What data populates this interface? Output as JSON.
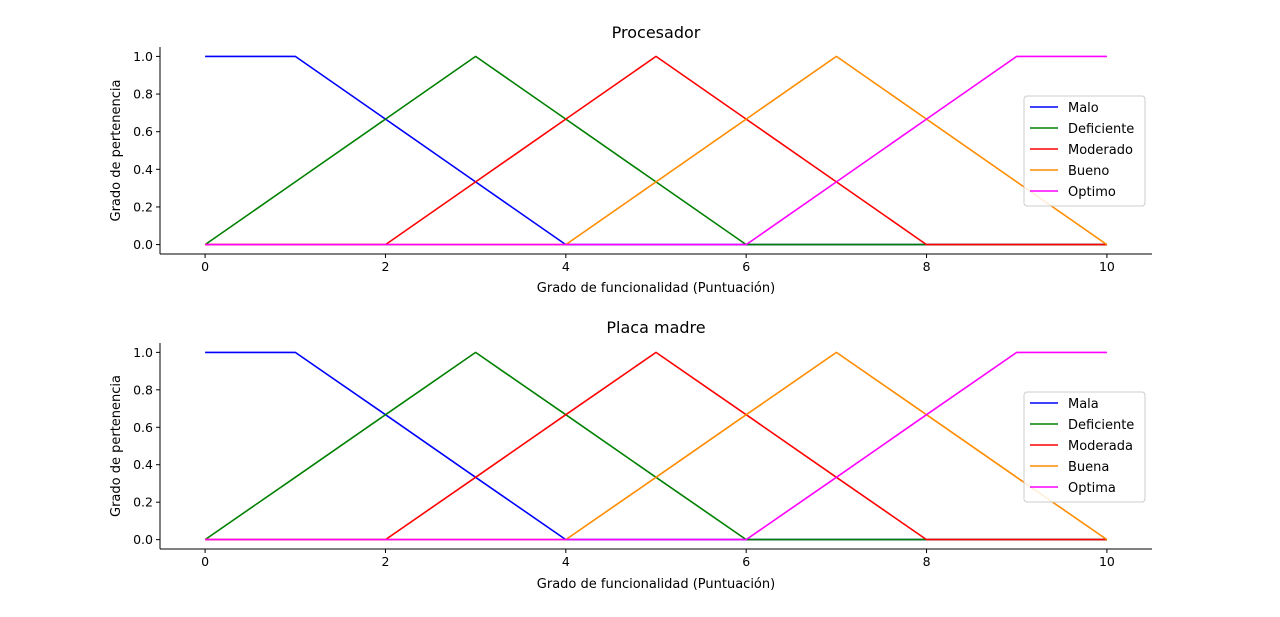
{
  "chart_data": [
    {
      "type": "line",
      "title": "Procesador",
      "xlabel": "Grado de funcionalidad (Puntuación)",
      "ylabel": "Grado de pertenencia",
      "xlim": [
        -0.5,
        10.5
      ],
      "ylim": [
        -0.05,
        1.05
      ],
      "xticks": [
        0,
        2,
        4,
        6,
        8,
        10
      ],
      "yticks": [
        0.0,
        0.2,
        0.4,
        0.6,
        0.8,
        1.0
      ],
      "grid": false,
      "legend_position": "center-right",
      "x": [
        0,
        1,
        2,
        3,
        4,
        5,
        6,
        7,
        8,
        9,
        10
      ],
      "series": [
        {
          "name": "Malo",
          "color": "#0000ff",
          "values": [
            1,
            1,
            0.667,
            0.333,
            0,
            0,
            0,
            0,
            0,
            0,
            0
          ]
        },
        {
          "name": "Deficiente",
          "color": "#008000",
          "values": [
            0,
            0.333,
            0.667,
            1,
            0.667,
            0.333,
            0,
            0,
            0,
            0,
            0
          ]
        },
        {
          "name": "Moderado",
          "color": "#ff0000",
          "values": [
            0,
            0,
            0,
            0.333,
            0.667,
            1,
            0.667,
            0.333,
            0,
            0,
            0
          ]
        },
        {
          "name": "Bueno",
          "color": "#ff8c00",
          "values": [
            0,
            0,
            0,
            0,
            0,
            0.333,
            0.667,
            1,
            0.667,
            0.333,
            0
          ]
        },
        {
          "name": "Optimo",
          "color": "#ff00ff",
          "values": [
            0,
            0,
            0,
            0,
            0,
            0,
            0,
            0.333,
            0.667,
            1,
            1
          ]
        }
      ]
    },
    {
      "type": "line",
      "title": "Placa madre",
      "xlabel": "Grado de funcionalidad (Puntuación)",
      "ylabel": "Grado de pertenencia",
      "xlim": [
        -0.5,
        10.5
      ],
      "ylim": [
        -0.05,
        1.05
      ],
      "xticks": [
        0,
        2,
        4,
        6,
        8,
        10
      ],
      "yticks": [
        0.0,
        0.2,
        0.4,
        0.6,
        0.8,
        1.0
      ],
      "grid": false,
      "legend_position": "center-right",
      "x": [
        0,
        1,
        2,
        3,
        4,
        5,
        6,
        7,
        8,
        9,
        10
      ],
      "series": [
        {
          "name": "Mala",
          "color": "#0000ff",
          "values": [
            1,
            1,
            0.667,
            0.333,
            0,
            0,
            0,
            0,
            0,
            0,
            0
          ]
        },
        {
          "name": "Deficiente",
          "color": "#008000",
          "values": [
            0,
            0.333,
            0.667,
            1,
            0.667,
            0.333,
            0,
            0,
            0,
            0,
            0
          ]
        },
        {
          "name": "Moderada",
          "color": "#ff0000",
          "values": [
            0,
            0,
            0,
            0.333,
            0.667,
            1,
            0.667,
            0.333,
            0,
            0,
            0
          ]
        },
        {
          "name": "Buena",
          "color": "#ff8c00",
          "values": [
            0,
            0,
            0,
            0,
            0,
            0.333,
            0.667,
            1,
            0.667,
            0.333,
            0
          ]
        },
        {
          "name": "Optima",
          "color": "#ff00ff",
          "values": [
            0,
            0,
            0,
            0,
            0,
            0,
            0,
            0.333,
            0.667,
            1,
            1
          ]
        }
      ]
    }
  ]
}
